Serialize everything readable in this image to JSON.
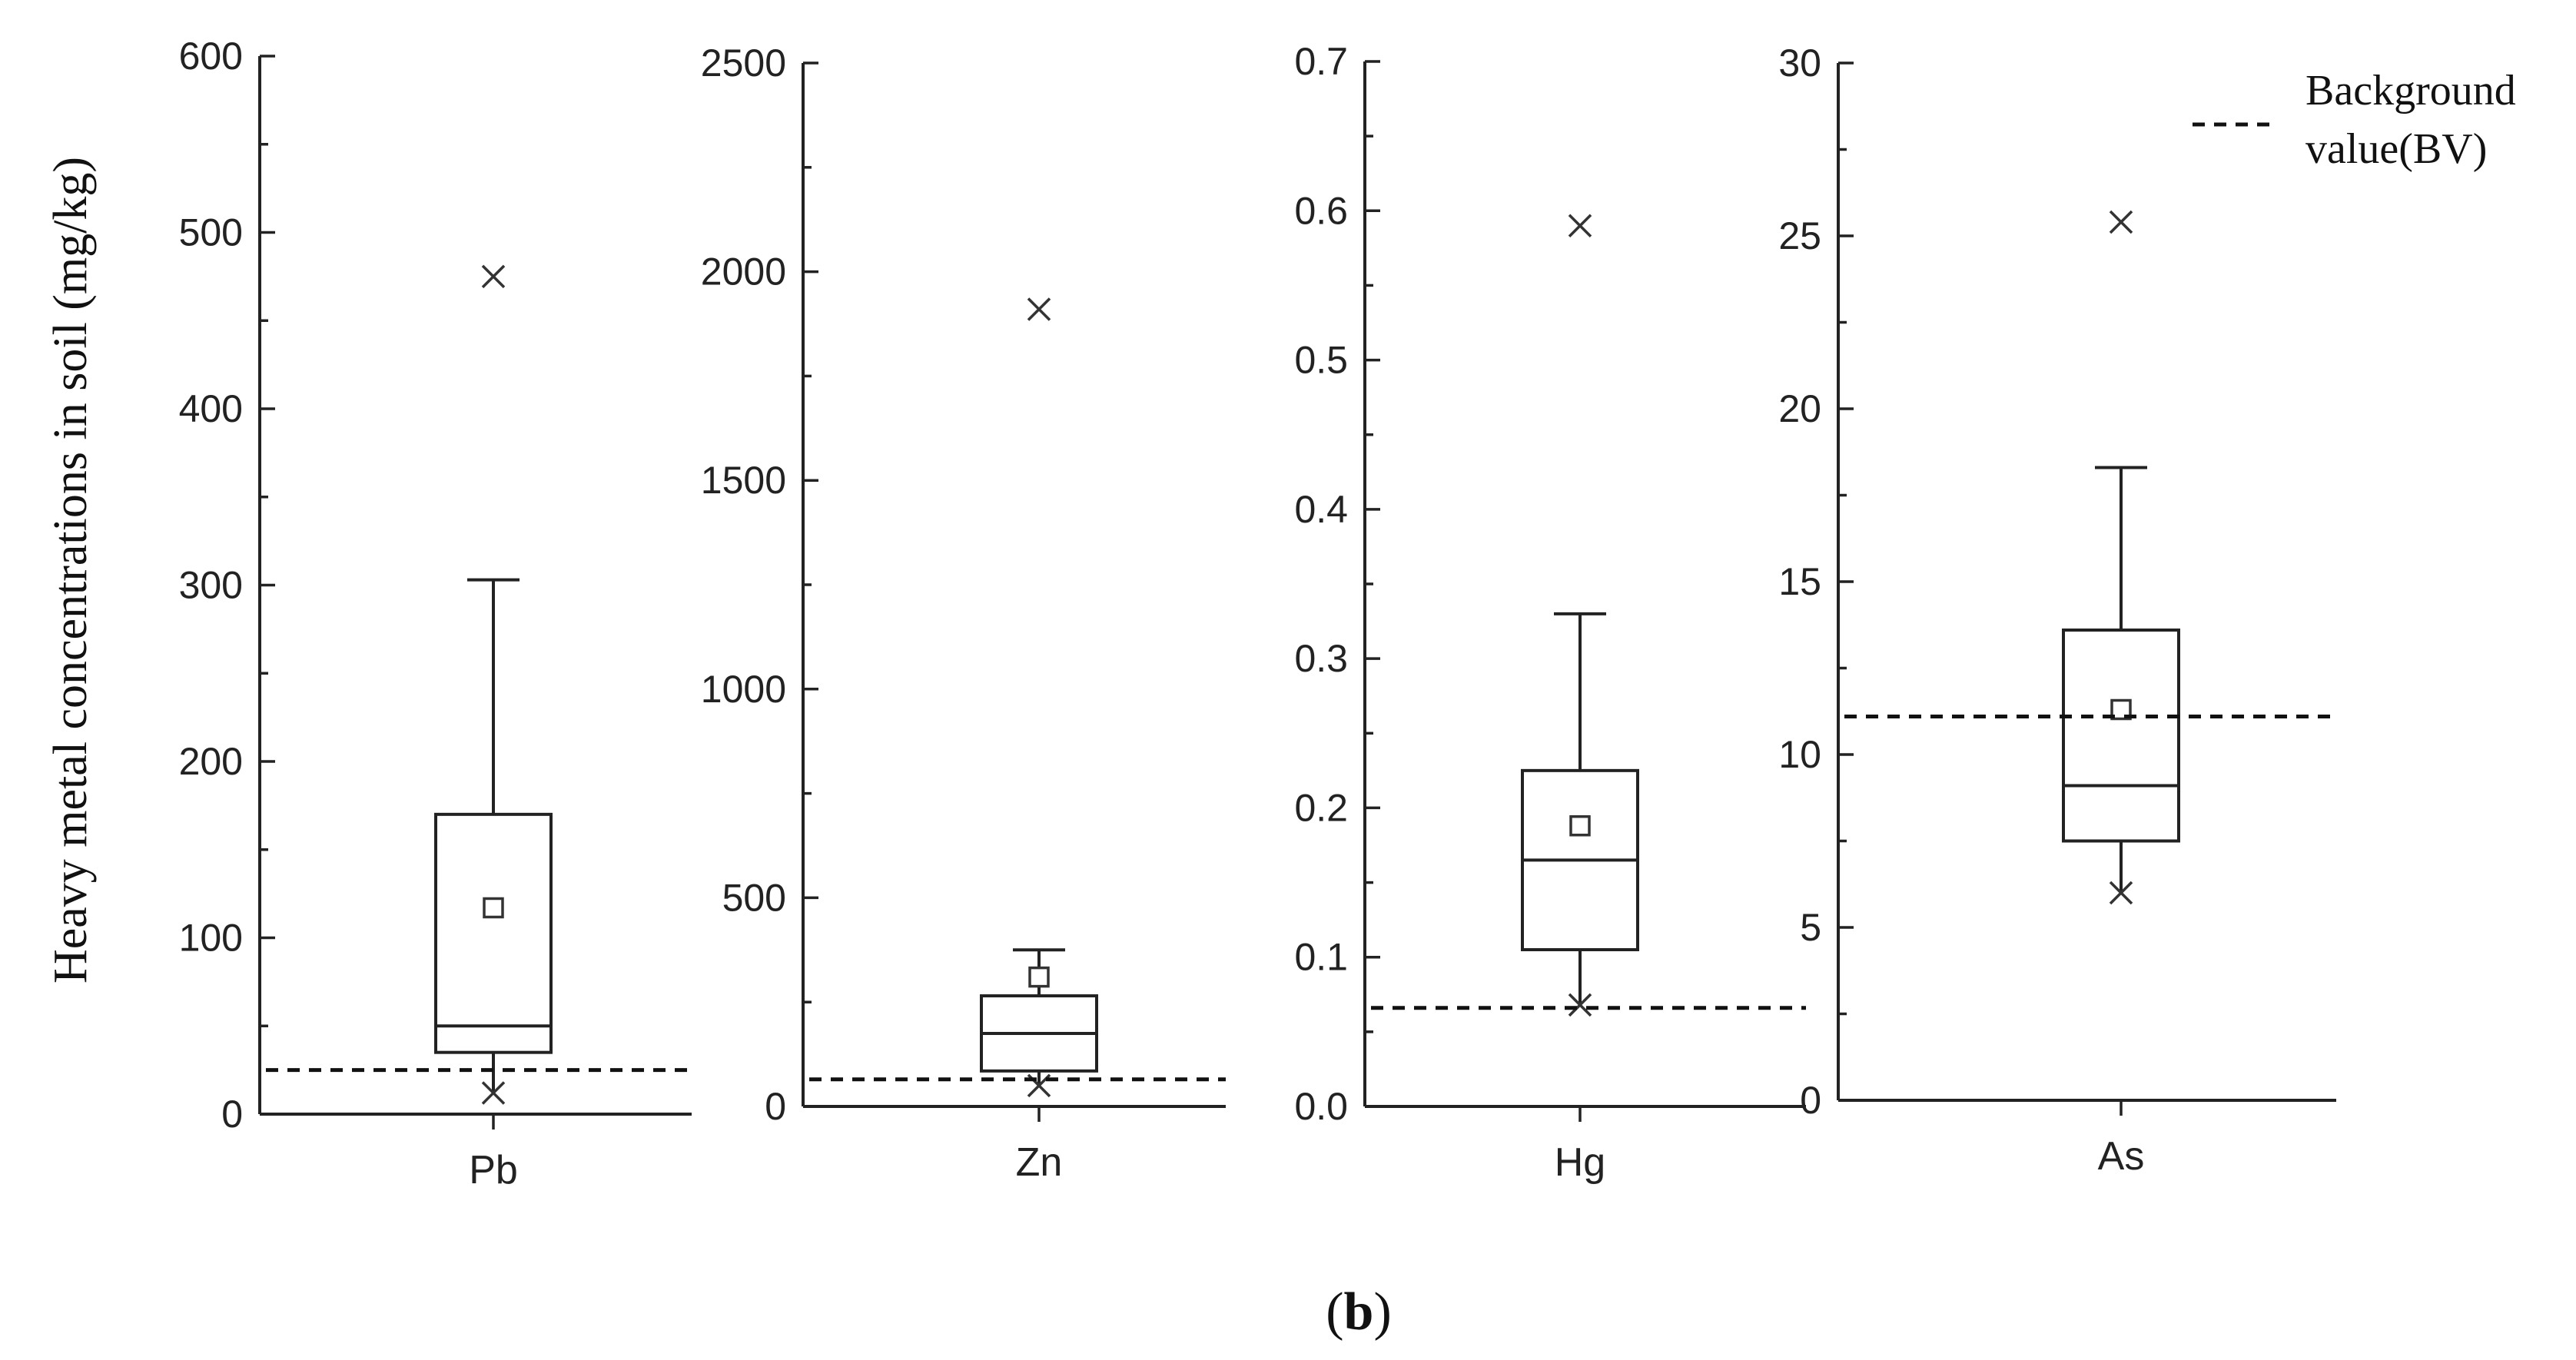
{
  "figure": {
    "panel_label_open": "(",
    "panel_label_letter": "b",
    "panel_label_close": ")",
    "ylabel": "Heavy metal concentrations in soil (mg/kg)",
    "legend": {
      "line_label": "Background",
      "line_label_2": "value(BV)"
    }
  },
  "chart_data": [
    {
      "type": "box",
      "category": "Pb",
      "yticks": [
        "0",
        "100",
        "200",
        "300",
        "400",
        "500",
        "600"
      ],
      "ylim": [
        0,
        600
      ],
      "whisker_low": 12,
      "q1": 35,
      "median": 50,
      "q3": 170,
      "whisker_high": 303,
      "mean": 117,
      "outliers": [
        475,
        12
      ],
      "background_value": 25
    },
    {
      "type": "box",
      "category": "Zn",
      "yticks": [
        "0",
        "500",
        "1000",
        "1500",
        "2000",
        "2500"
      ],
      "ylim": [
        0,
        2500
      ],
      "whisker_low": 50,
      "q1": 85,
      "median": 175,
      "q3": 265,
      "whisker_high": 375,
      "mean": 310,
      "outliers": [
        1910,
        50
      ],
      "background_value": 65
    },
    {
      "type": "box",
      "category": "Hg",
      "yticks": [
        "0.0",
        "0.1",
        "0.2",
        "0.3",
        "0.4",
        "0.5",
        "0.6",
        "0.7"
      ],
      "ylim": [
        0,
        0.7
      ],
      "whisker_low": 0.068,
      "q1": 0.105,
      "median": 0.165,
      "q3": 0.225,
      "whisker_high": 0.33,
      "mean": 0.188,
      "outliers": [
        0.59,
        0.068
      ],
      "background_value": 0.066
    },
    {
      "type": "box",
      "category": "As",
      "yticks": [
        "0",
        "5",
        "10",
        "15",
        "20",
        "25",
        "30"
      ],
      "ylim": [
        0,
        30
      ],
      "whisker_low": 6.0,
      "q1": 7.5,
      "median": 9.1,
      "q3": 13.6,
      "whisker_high": 18.3,
      "mean": 11.3,
      "outliers": [
        25.4,
        6.0
      ],
      "background_value": 11.1
    }
  ]
}
